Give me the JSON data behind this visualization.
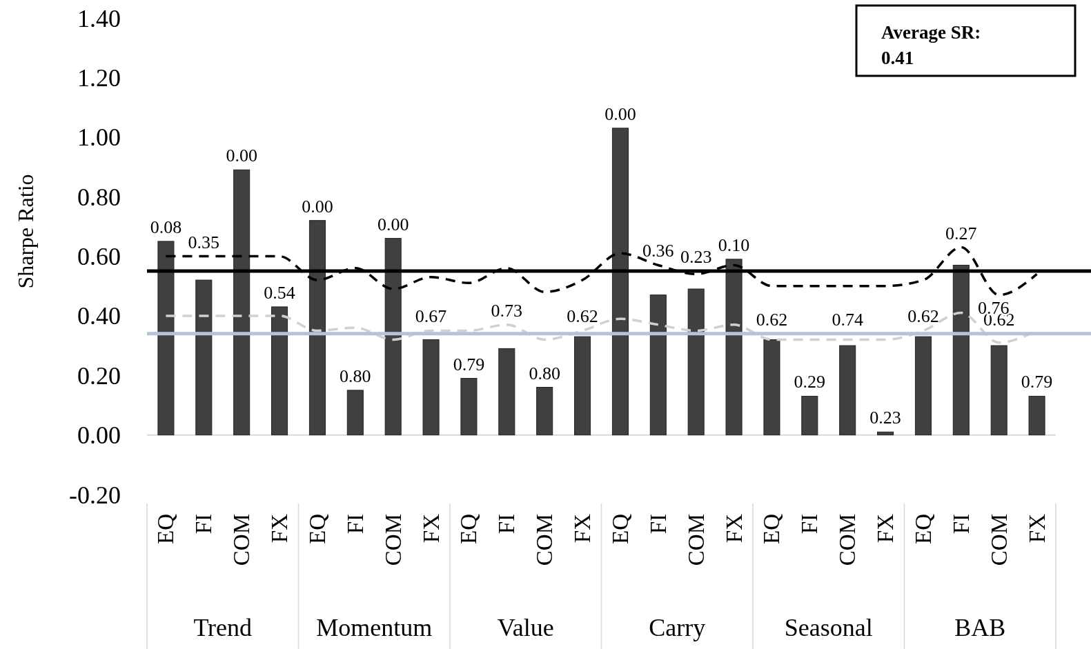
{
  "chart_data": {
    "type": "bar",
    "ylabel": "Sharpe Ratio",
    "categories": [
      "EQ",
      "FI",
      "COM",
      "FX",
      "EQ",
      "FI",
      "COM",
      "FX",
      "EQ",
      "FI",
      "COM",
      "FX",
      "EQ",
      "FI",
      "COM",
      "FX",
      "EQ",
      "FI",
      "COM",
      "FX",
      "EQ",
      "FI",
      "COM",
      "FX"
    ],
    "series": [
      {
        "color": "#404040",
        "values": [
          0.65,
          0.52,
          0.89,
          0.43,
          0.72,
          0.15,
          0.66,
          0.32,
          0.19,
          0.29,
          0.16,
          0.33,
          1.03,
          0.47,
          0.49,
          0.59,
          0.32,
          0.13,
          0.3,
          0.01,
          0.33,
          0.57,
          0.3,
          0.13
        ]
      },
      {
        "type": "line",
        "color": "#000000",
        "line_style": "dashed",
        "values": [
          0.6,
          0.6,
          0.6,
          0.6,
          0.52,
          0.56,
          0.49,
          0.53,
          0.51,
          0.56,
          0.48,
          0.52,
          0.61,
          0.57,
          0.54,
          0.57,
          0.5,
          0.5,
          0.5,
          0.5,
          0.52,
          0.63,
          0.47,
          0.54
        ]
      },
      {
        "type": "line",
        "color": "#d0d0d0",
        "line_style": "dashed",
        "values": [
          0.4,
          0.4,
          0.4,
          0.4,
          0.35,
          0.36,
          0.32,
          0.35,
          0.35,
          0.37,
          0.32,
          0.35,
          0.39,
          0.37,
          0.35,
          0.37,
          0.32,
          0.32,
          0.32,
          0.32,
          0.35,
          0.41,
          0.31,
          0.35
        ]
      }
    ],
    "ylim": [
      -0.2,
      1.4
    ],
    "yticks": [
      {
        "value": -0.2,
        "label": "-0.20"
      },
      {
        "value": 0,
        "label": "0.00"
      },
      {
        "value": 0.2,
        "label": "0.20"
      },
      {
        "value": 0.4,
        "label": "0.40"
      },
      {
        "value": 0.6,
        "label": "0.60"
      },
      {
        "value": 0.8,
        "label": "0.80"
      },
      {
        "value": 1.0,
        "label": "1.00"
      },
      {
        "value": 1.2,
        "label": "1.20"
      },
      {
        "value": 1.4,
        "label": "1.40"
      }
    ],
    "ref_lines": [
      {
        "axis": "y",
        "value": 0.55,
        "color": "#000000"
      },
      {
        "axis": "y",
        "value": 0.34,
        "color": "#b4c4d8"
      }
    ],
    "annotations": [
      "Average SR:\n0.41",
      "Trend",
      "Momentum",
      "Value",
      "Carry",
      "Seasonal",
      "BAB",
      "0.08",
      "0.35",
      "0.00",
      "0.54",
      "0.00",
      "0.80",
      "0.00",
      "0.67",
      "0.79",
      "0.73",
      "0.80",
      "0.62",
      "0.00",
      "0.36",
      "0.23",
      "0.10",
      "0.62",
      "0.29",
      "0.74",
      "0.23",
      "0.62",
      "0.27",
      "0.62",
      "0.79",
      "0.76"
    ],
    "marker": "none"
  }
}
